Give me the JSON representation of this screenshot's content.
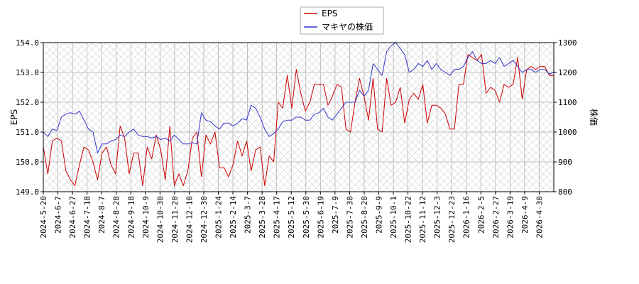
{
  "chart_data": {
    "type": "line",
    "title": "",
    "xlabel": "",
    "ylabel_left": "EPS",
    "ylabel_right": "株価",
    "ylim_left": [
      149.0,
      154.0
    ],
    "ylim_right": [
      800,
      1300
    ],
    "yticks_left": [
      "149.0",
      "150.0",
      "151.0",
      "152.0",
      "153.0",
      "154.0"
    ],
    "yticks_right": [
      "800",
      "900",
      "1000",
      "1100",
      "1200",
      "1300"
    ],
    "x_tick_labels": [
      "2024-5-20",
      "2024-6-7",
      "2024-6-27",
      "2024-7-18",
      "2024-8-7",
      "2024-8-28",
      "2024-9-18",
      "2024-10-9",
      "2024-10-30",
      "2024-11-20",
      "2024-12-10",
      "2024-12-30",
      "2025-1-24",
      "2025-2-14",
      "2025-3-7",
      "2025-3-28",
      "2025-4-17",
      "2025-5-12",
      "2025-5-30",
      "2025-6-19",
      "2025-7-9",
      "2025-7-30",
      "2025-8-20",
      "2025-9-9",
      "2025-10-1",
      "2025-10-22",
      "2025-11-12",
      "2025-12-3",
      "2025-12-23",
      "2026-1-16",
      "2026-2-5",
      "2026-2-27",
      "2026-3-19",
      "2026-4-9",
      "2026-4-30"
    ],
    "grid": true,
    "legend_position": "top-center",
    "series": [
      {
        "name": "EPS",
        "axis": "left",
        "color": "#cc0000",
        "values": [
          150.5,
          149.6,
          150.7,
          150.8,
          150.7,
          149.7,
          149.4,
          149.2,
          149.9,
          150.5,
          150.4,
          150.0,
          149.4,
          150.3,
          150.5,
          149.9,
          149.6,
          151.2,
          150.8,
          149.6,
          150.3,
          150.3,
          149.2,
          150.5,
          150.1,
          150.9,
          150.4,
          149.4,
          151.2,
          149.2,
          149.6,
          149.2,
          149.7,
          150.8,
          151.0,
          149.5,
          150.9,
          150.6,
          151.0,
          149.8,
          149.8,
          149.5,
          149.9,
          150.7,
          150.2,
          150.7,
          149.7,
          150.4,
          150.5,
          149.2,
          150.2,
          150.0,
          152.0,
          151.8,
          152.9,
          151.8,
          153.1,
          152.3,
          151.7,
          152.0,
          152.6,
          152.6,
          152.6,
          151.9,
          152.2,
          152.6,
          152.5,
          151.1,
          151.0,
          152.0,
          152.8,
          152.2,
          151.4,
          152.8,
          151.1,
          151.0,
          152.8,
          151.9,
          152.0,
          152.5,
          151.3,
          152.1,
          152.3,
          152.1,
          152.6,
          151.3,
          151.9,
          151.9,
          151.8,
          151.6,
          151.1,
          151.1,
          152.6,
          152.6,
          153.6,
          153.5,
          153.4,
          153.6,
          152.3,
          152.5,
          152.4,
          152.0,
          152.6,
          152.5,
          152.6,
          153.5,
          152.1,
          153.1,
          153.2,
          153.1,
          153.2,
          153.2,
          152.9,
          152.9
        ]
      },
      {
        "name": "マキヤの株価",
        "axis": "right",
        "color": "#3333cc",
        "values": [
          1000,
          985,
          1010,
          1005,
          1050,
          1060,
          1065,
          1060,
          1070,
          1040,
          1010,
          1000,
          930,
          960,
          960,
          970,
          975,
          990,
          985,
          1000,
          1010,
          990,
          985,
          985,
          980,
          985,
          975,
          980,
          970,
          990,
          975,
          960,
          960,
          965,
          960,
          1065,
          1040,
          1035,
          1020,
          1010,
          1030,
          1030,
          1020,
          1030,
          1045,
          1040,
          1090,
          1080,
          1050,
          1010,
          985,
          995,
          1010,
          1035,
          1040,
          1040,
          1050,
          1050,
          1040,
          1040,
          1060,
          1065,
          1080,
          1050,
          1040,
          1060,
          1080,
          1100,
          1100,
          1100,
          1140,
          1120,
          1140,
          1230,
          1210,
          1190,
          1270,
          1290,
          1300,
          1280,
          1260,
          1200,
          1210,
          1230,
          1220,
          1240,
          1210,
          1230,
          1210,
          1200,
          1190,
          1210,
          1210,
          1220,
          1250,
          1270,
          1240,
          1230,
          1230,
          1240,
          1230,
          1250,
          1220,
          1230,
          1240,
          1220,
          1200,
          1210,
          1210,
          1200,
          1210,
          1210,
          1195,
          1200
        ]
      }
    ]
  }
}
